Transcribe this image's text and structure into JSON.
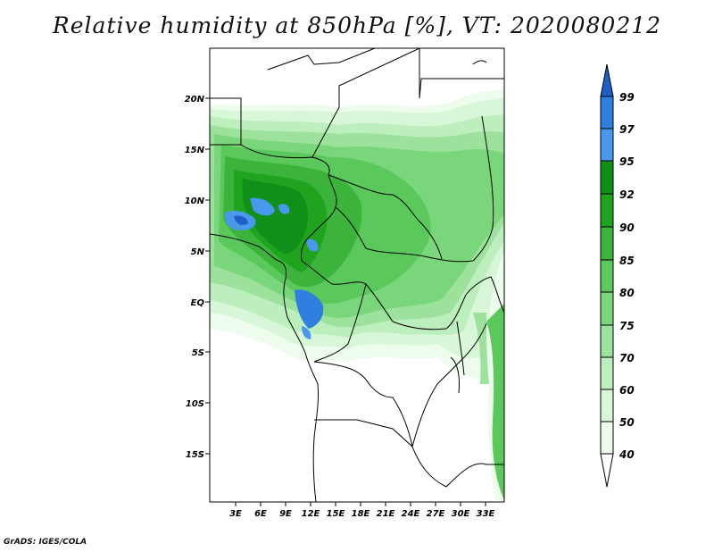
{
  "title": "Relative humidity at 850hPa [%], VT: 2020080212",
  "credit": "GrADS: IGES/COLA",
  "map": {
    "lat_labels": [
      "20N",
      "15N",
      "10N",
      "5N",
      "EQ",
      "5S",
      "10S",
      "15S"
    ],
    "lon_labels": [
      "3E",
      "6E",
      "9E",
      "12E",
      "15E",
      "18E",
      "21E",
      "24E",
      "27E",
      "30E",
      "33E"
    ]
  },
  "colorbar": {
    "levels": [
      "99",
      "97",
      "95",
      "92",
      "90",
      "85",
      "80",
      "75",
      "70",
      "60",
      "50",
      "40"
    ],
    "colors": [
      "#1f5fc8",
      "#2f7fe0",
      "#4a98ee",
      "#109018",
      "#20a420",
      "#3cb43c",
      "#5ac85a",
      "#7ad67a",
      "#9ce29c",
      "#bdeebd",
      "#d8f6d8",
      "#eefcee"
    ]
  }
}
